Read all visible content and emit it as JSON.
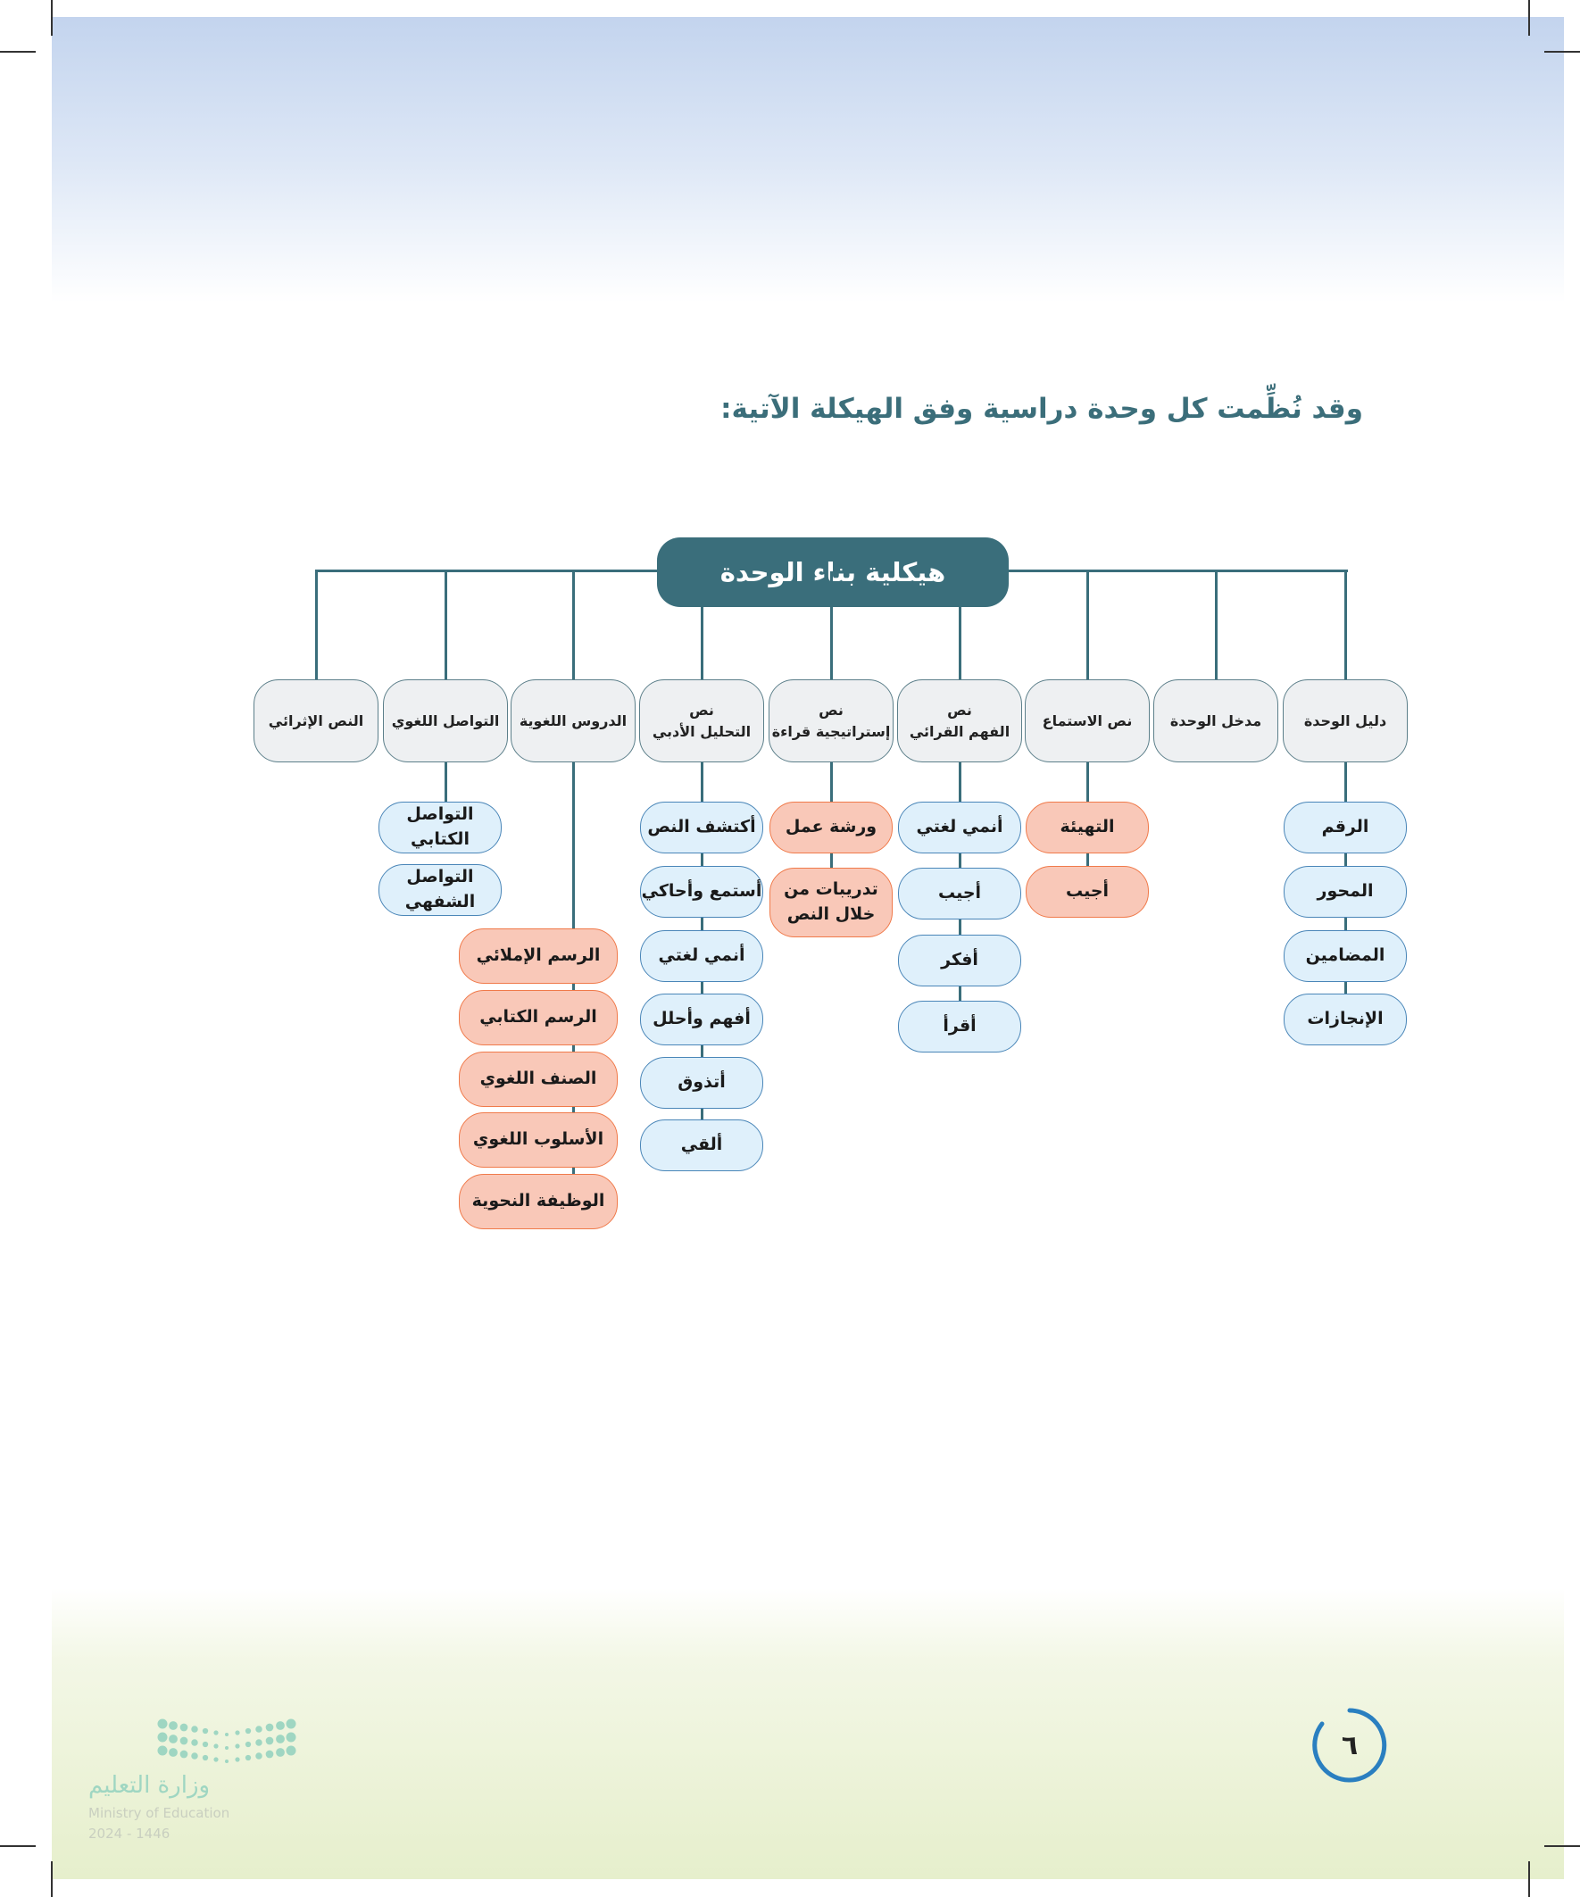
{
  "intro": "وقد نُظِّمت كل وحدة دراسية وفق الهيكلة الآتية:",
  "diagram": {
    "title": "هيكلية بناء الوحدة",
    "colors": {
      "connector": "#3a6e7b",
      "level1_fill": "#eef0f2",
      "blue_fill": "#dff0fb",
      "blue_border": "#4a86b8",
      "orange_fill": "#f9c8b8",
      "orange_border": "#f07a4a"
    },
    "columns": [
      {
        "label": "دليل الوحدة",
        "children": [
          {
            "label": "الرقم",
            "style": "blue"
          },
          {
            "label": "المحور",
            "style": "blue"
          },
          {
            "label": "المضامين",
            "style": "blue"
          },
          {
            "label": "الإنجازات",
            "style": "blue"
          }
        ]
      },
      {
        "label": "مدخل الوحدة",
        "children": []
      },
      {
        "label": "نص الاستماع",
        "children": [
          {
            "label": "التهيئة",
            "style": "orange"
          },
          {
            "label": "أجيب",
            "style": "orange"
          }
        ]
      },
      {
        "label": "نص\nالفهم القرائي",
        "children": [
          {
            "label": "أنمي لغتي",
            "style": "blue"
          },
          {
            "label": "أجيب",
            "style": "blue"
          },
          {
            "label": "أفكر",
            "style": "blue"
          },
          {
            "label": "أقرأ",
            "style": "blue"
          }
        ]
      },
      {
        "label": "نص\nإستراتيجية قراءة",
        "children": [
          {
            "label": "ورشة عمل",
            "style": "orange"
          },
          {
            "label": "تدريبات من\nخلال النص",
            "style": "orange"
          }
        ]
      },
      {
        "label": "نص\nالتحليل الأدبي",
        "children": [
          {
            "label": "أكتشف النص",
            "style": "blue"
          },
          {
            "label": "أستمع وأحاكي",
            "style": "blue"
          },
          {
            "label": "أنمي لغتي",
            "style": "blue"
          },
          {
            "label": "أفهم وأحلل",
            "style": "blue"
          },
          {
            "label": "أتذوق",
            "style": "blue"
          },
          {
            "label": "ألقي",
            "style": "blue"
          }
        ]
      },
      {
        "label": "الدروس اللغوية",
        "children": [
          {
            "label": "الرسم الإملائي",
            "style": "orange"
          },
          {
            "label": "الرسم الكتابي",
            "style": "orange"
          },
          {
            "label": "الصنف اللغوي",
            "style": "orange"
          },
          {
            "label": "الأسلوب اللغوي",
            "style": "orange"
          },
          {
            "label": "الوظيفة النحوية",
            "style": "orange"
          }
        ]
      },
      {
        "label": "التواصل اللغوي",
        "children": [
          {
            "label": "التواصل الكتابي",
            "style": "blue"
          },
          {
            "label": "التواصل الشفهي",
            "style": "blue"
          }
        ]
      },
      {
        "label": "النص الإثرائي",
        "children": []
      }
    ]
  },
  "page_number": "٦",
  "page_number_color": "#2a7fc0",
  "logo": {
    "arabic": "وزارة التعليم",
    "english": "Ministry of Education",
    "year": "2024 - 1446",
    "color": "#9fd6c2"
  }
}
